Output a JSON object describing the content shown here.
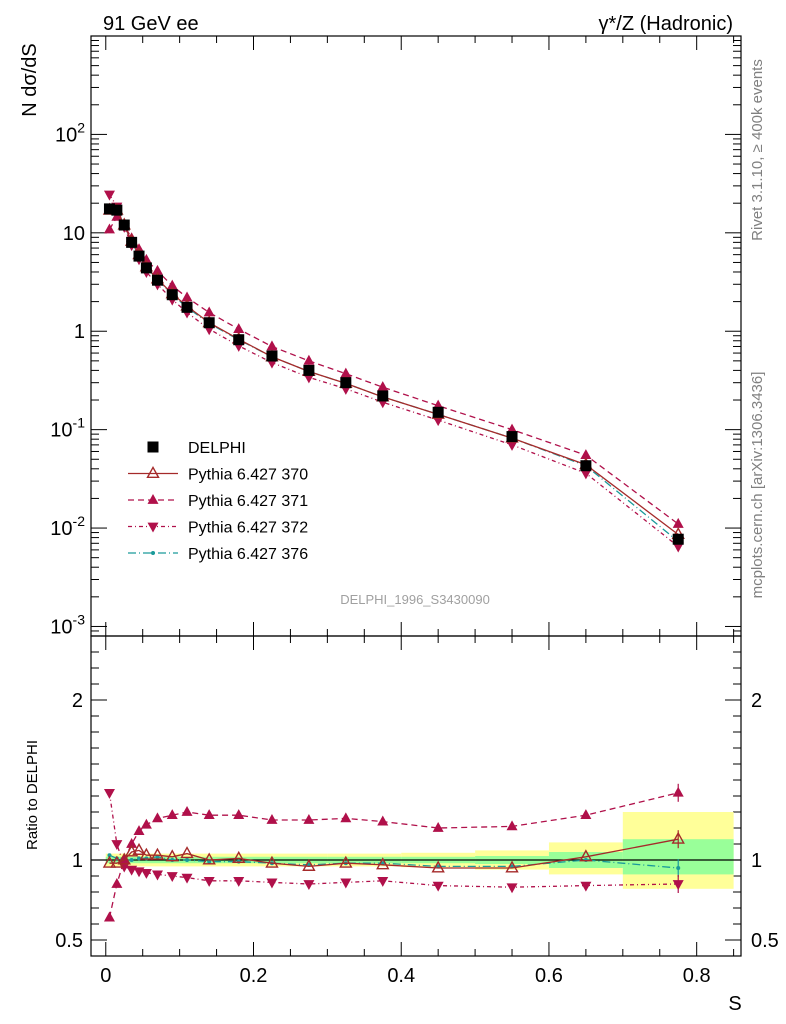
{
  "header": {
    "left_title": "91 GeV ee",
    "right_title": "γ*/Z (Hadronic)"
  },
  "side_text": {
    "rivet": "Rivet 3.1.10, ≥ 400k events",
    "mcplots": "mcplots.cern.ch [arXiv:1306.3436]"
  },
  "watermark": "DELPHI_1996_S3430090",
  "chart_data": [
    {
      "type": "scatter",
      "yscale": "log",
      "ylabel": "N dσ/dS",
      "xlim": [
        -0.02,
        0.86
      ],
      "ylim": [
        0.0008,
        1000
      ],
      "ytick_labels": [
        "10^-3",
        "10^-2",
        "10^-1",
        "1",
        "10",
        "10^2"
      ],
      "x": [
        0.005,
        0.015,
        0.025,
        0.035,
        0.045,
        0.055,
        0.07,
        0.09,
        0.11,
        0.14,
        0.18,
        0.225,
        0.275,
        0.325,
        0.375,
        0.45,
        0.55,
        0.65,
        0.775
      ],
      "series": [
        {
          "name": "DELPHI",
          "color": "#000000",
          "marker": "square",
          "values": [
            17.5,
            17.0,
            12.0,
            8.0,
            5.8,
            4.4,
            3.3,
            2.35,
            1.75,
            1.22,
            0.82,
            0.56,
            0.4,
            0.3,
            0.22,
            0.15,
            0.085,
            0.043,
            0.0077
          ]
        },
        {
          "name": "Pythia 6.427 370",
          "color": "#a52a2a",
          "marker": "open-triangle-up",
          "dash": "solid",
          "values": [
            17.0,
            17.0,
            12.0,
            8.2,
            6.0,
            4.5,
            3.4,
            2.4,
            1.8,
            1.22,
            0.83,
            0.55,
            0.39,
            0.295,
            0.215,
            0.143,
            0.082,
            0.044,
            0.0086
          ]
        },
        {
          "name": "Pythia 6.427 371",
          "color": "#b0104a",
          "marker": "triangle-up",
          "dash": "6,4",
          "values": [
            10.8,
            14.5,
            12.0,
            8.8,
            6.8,
            5.3,
            4.1,
            2.9,
            2.2,
            1.55,
            1.05,
            0.7,
            0.5,
            0.37,
            0.27,
            0.175,
            0.1,
            0.055,
            0.011
          ]
        },
        {
          "name": "Pythia 6.427 372",
          "color": "#b0104a",
          "marker": "triangle-down",
          "dash": "4,3,1,3",
          "values": [
            24.5,
            18.5,
            11.5,
            7.5,
            5.4,
            4.0,
            3.0,
            2.1,
            1.55,
            1.05,
            0.71,
            0.48,
            0.34,
            0.26,
            0.19,
            0.125,
            0.07,
            0.036,
            0.0065
          ]
        },
        {
          "name": "Pythia 6.427 376",
          "color": "#1a9a9a",
          "marker": "dot",
          "dash": "8,3,1,3",
          "values": [
            18.0,
            17.2,
            12.0,
            8.0,
            5.9,
            4.5,
            3.35,
            2.35,
            1.75,
            1.2,
            0.82,
            0.55,
            0.39,
            0.295,
            0.215,
            0.143,
            0.082,
            0.043,
            0.0073
          ]
        }
      ]
    },
    {
      "type": "line",
      "ylabel": "Ratio to DELPHI",
      "xlabel": "S",
      "xlim": [
        -0.02,
        0.86
      ],
      "ylim": [
        0.4,
        2.4
      ],
      "ytick_labels": [
        "0.5",
        "1",
        "2"
      ],
      "xtick_labels": [
        "0",
        "0.2",
        "0.4",
        "0.6",
        "0.8"
      ],
      "x": [
        0.005,
        0.015,
        0.025,
        0.035,
        0.045,
        0.055,
        0.07,
        0.09,
        0.11,
        0.14,
        0.18,
        0.225,
        0.275,
        0.325,
        0.375,
        0.45,
        0.55,
        0.65,
        0.775
      ],
      "bands": [
        {
          "x0": 0.0,
          "x1": 0.3,
          "stat": [
            0.98,
            1.02
          ],
          "total": [
            0.96,
            1.04
          ]
        },
        {
          "x0": 0.3,
          "x1": 0.4,
          "stat": [
            0.98,
            1.02
          ],
          "total": [
            0.96,
            1.04
          ]
        },
        {
          "x0": 0.4,
          "x1": 0.5,
          "stat": [
            0.98,
            1.02
          ],
          "total": [
            0.955,
            1.045
          ]
        },
        {
          "x0": 0.5,
          "x1": 0.6,
          "stat": [
            0.975,
            1.025
          ],
          "total": [
            0.94,
            1.06
          ]
        },
        {
          "x0": 0.6,
          "x1": 0.7,
          "stat": [
            0.95,
            1.05
          ],
          "total": [
            0.91,
            1.11
          ]
        },
        {
          "x0": 0.7,
          "x1": 0.85,
          "stat": [
            0.91,
            1.13
          ],
          "total": [
            0.82,
            1.3
          ]
        }
      ],
      "series": [
        {
          "name": "Pythia 6.427 370",
          "values": [
            0.98,
            0.98,
            1.0,
            1.05,
            1.06,
            1.03,
            1.03,
            1.02,
            1.04,
            1.0,
            1.01,
            0.98,
            0.96,
            0.98,
            0.97,
            0.95,
            0.95,
            1.02,
            1.13
          ]
        },
        {
          "name": "Pythia 6.427 371",
          "values": [
            0.64,
            0.85,
            1.0,
            1.1,
            1.18,
            1.22,
            1.26,
            1.28,
            1.3,
            1.28,
            1.28,
            1.25,
            1.25,
            1.26,
            1.24,
            1.2,
            1.21,
            1.28,
            1.42
          ]
        },
        {
          "name": "Pythia 6.427 372",
          "values": [
            1.42,
            1.1,
            0.96,
            0.94,
            0.93,
            0.92,
            0.91,
            0.9,
            0.89,
            0.87,
            0.87,
            0.86,
            0.85,
            0.86,
            0.87,
            0.84,
            0.83,
            0.84,
            0.85
          ]
        },
        {
          "name": "Pythia 6.427 376",
          "values": [
            1.03,
            1.01,
            1.0,
            1.0,
            1.01,
            1.01,
            1.02,
            1.0,
            1.0,
            0.99,
            0.99,
            0.98,
            0.97,
            0.98,
            0.98,
            0.96,
            0.96,
            1.0,
            0.95
          ]
        }
      ]
    }
  ]
}
